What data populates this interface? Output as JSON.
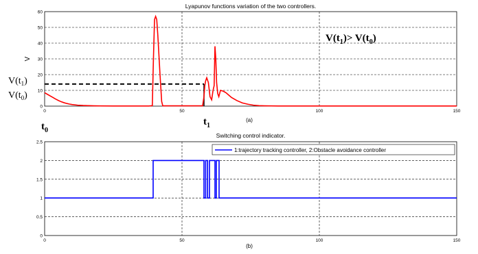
{
  "colors": {
    "lyapunov_line": "#ff0000",
    "switch_line": "#0000ff",
    "grid": "#000000",
    "threshold": "#000000"
  },
  "chart_data": [
    {
      "type": "line",
      "title": "Lyapunov functions  variation of the two controllers.",
      "xlabel": "",
      "ylabel": "V",
      "sublabel": "(a)",
      "xlim": [
        0,
        150
      ],
      "ylim": [
        0,
        60
      ],
      "xticks": [
        0,
        50,
        100,
        150
      ],
      "yticks": [
        0,
        10,
        20,
        30,
        40,
        50,
        60
      ],
      "grid": true,
      "series": [
        {
          "x": [
            0,
            1,
            2,
            3,
            4,
            5,
            6,
            7,
            8,
            9,
            10,
            12,
            14,
            16,
            18,
            20,
            25,
            30,
            35,
            38,
            39.2,
            39.6,
            40,
            40.4,
            40.8,
            41.2,
            42,
            42.6,
            43,
            50,
            57.5,
            58,
            58.3,
            58.6,
            59,
            59.6,
            60.2,
            60.8,
            61.3,
            61.7,
            62,
            62.3,
            62.6,
            63,
            63.4,
            64,
            65,
            66,
            67,
            68,
            70,
            72,
            74,
            76,
            78,
            80,
            85,
            90,
            100,
            110,
            120,
            130,
            140,
            150
          ],
          "y": [
            8.5,
            7.5,
            6.5,
            5.5,
            4.5,
            3.6,
            2.8,
            2.2,
            1.7,
            1.3,
            1.0,
            0.6,
            0.4,
            0.3,
            0.2,
            0.15,
            0.1,
            0.1,
            0.1,
            0.1,
            0.3,
            30,
            55,
            57,
            55,
            45,
            20,
            3,
            0.2,
            0.2,
            0.2,
            6,
            13,
            16,
            18,
            15,
            6,
            4,
            10,
            13,
            38,
            30,
            15,
            8,
            6,
            10,
            9.5,
            8.5,
            7,
            5.5,
            3.5,
            2,
            1.2,
            0.6,
            0.3,
            0.2,
            0.1,
            0.1,
            0.1,
            0.1,
            0.1,
            0.1,
            0.1,
            0.1
          ]
        }
      ],
      "threshold": {
        "y": 14,
        "x_end": 58,
        "vline_x": 58,
        "label_upper": "V(t",
        "label_upper_sub": "1",
        "label_upper_end": ")",
        "label_lower": "V(t",
        "label_lower_sub": "0",
        "label_lower_end": ")",
        "lower_y": 8.5
      },
      "annotations": {
        "inequality_a": "V(t",
        "inequality_a_sub": "1",
        "inequality_b": ")> V(t",
        "inequality_b_sub": "0",
        "inequality_c": ")",
        "t0_main": "t",
        "t0_sub": "0",
        "t1_main": "t",
        "t1_sub": "1"
      }
    },
    {
      "type": "line",
      "title": "Switching control indicator.",
      "xlabel": "",
      "ylabel": "",
      "sublabel": "(b)",
      "xlim": [
        0,
        150
      ],
      "ylim": [
        0,
        2.5
      ],
      "xticks": [
        0,
        50,
        100,
        150
      ],
      "yticks": [
        0,
        0.5,
        1,
        1.5,
        2,
        2.5
      ],
      "ytick_labels": [
        "0",
        "0.5",
        "1",
        "1.5",
        "2",
        "2.5"
      ],
      "grid": true,
      "legend": "top-right",
      "series": [
        {
          "name": "1:trajectory tracking controller, 2:Obstacle avoidance controller",
          "x": [
            0,
            39.5,
            39.5,
            58,
            58,
            58.6,
            58.6,
            59.3,
            59.3,
            60,
            60,
            62,
            62,
            62.5,
            62.5,
            63.5,
            63.5,
            150
          ],
          "y": [
            1,
            1,
            2,
            2,
            1,
            1,
            2,
            2,
            1,
            1,
            2,
            2,
            1,
            1,
            2,
            2,
            1,
            1
          ]
        }
      ]
    }
  ]
}
